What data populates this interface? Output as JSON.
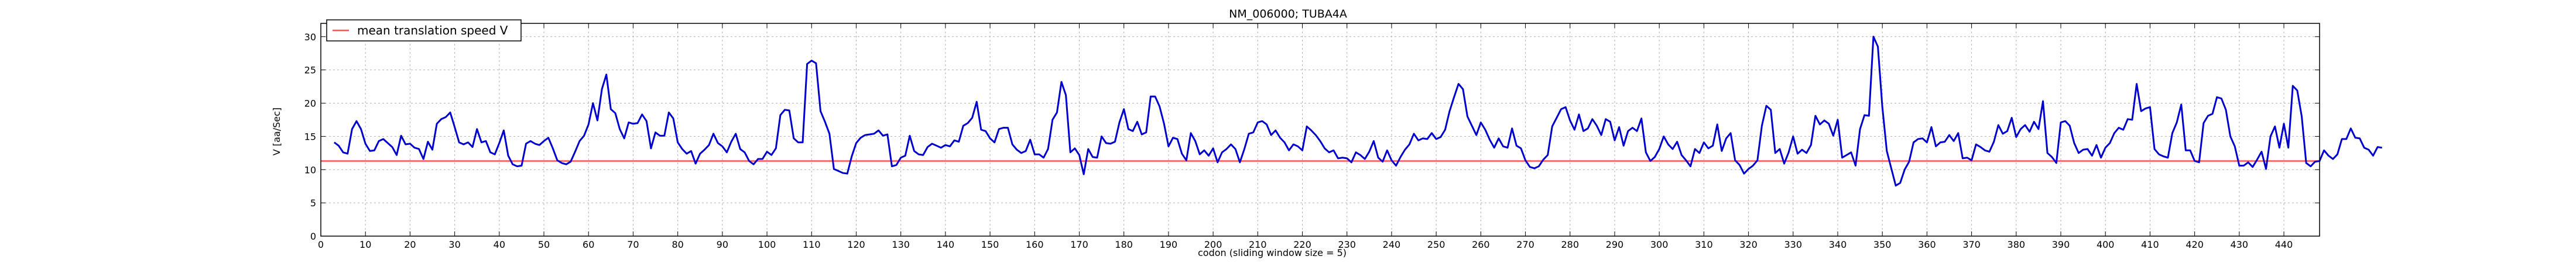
{
  "chart_data": {
    "type": "line",
    "title": "NM_006000; TUBA4A",
    "xlabel": "codon  (sliding window size = 5)",
    "ylabel": "V [aa/Sec]",
    "xlim": [
      0,
      448
    ],
    "ylim": [
      0,
      32
    ],
    "xticks": [
      0,
      10,
      20,
      30,
      40,
      50,
      60,
      70,
      80,
      90,
      100,
      110,
      120,
      130,
      140,
      150,
      160,
      170,
      180,
      190,
      200,
      210,
      220,
      230,
      240,
      250,
      260,
      270,
      280,
      290,
      300,
      310,
      320,
      330,
      340,
      350,
      360,
      370,
      380,
      390,
      400,
      410,
      420,
      430,
      440
    ],
    "yticks": [
      0,
      5,
      10,
      15,
      20,
      25,
      30
    ],
    "grid": true,
    "legend_position": "top-left",
    "series": [
      {
        "name": "V",
        "color": "#0000cc",
        "x_start": 3,
        "values": [
          14.1,
          13.6,
          12.6,
          12.4,
          16.1,
          17.3,
          16.1,
          13.9,
          12.8,
          12.9,
          14.3,
          14.6,
          14.0,
          13.4,
          12.2,
          15.1,
          13.8,
          13.9,
          13.3,
          13.1,
          11.6,
          14.2,
          13.0,
          16.9,
          17.6,
          17.9,
          18.6,
          16.4,
          14.1,
          13.8,
          14.1,
          13.4,
          16.1,
          14.1,
          14.3,
          12.6,
          12.3,
          14.0,
          15.9,
          12.1,
          10.8,
          10.5,
          10.6,
          13.9,
          14.3,
          13.9,
          13.7,
          14.3,
          14.8,
          13.2,
          11.4,
          11.0,
          10.8,
          11.2,
          12.7,
          14.3,
          15.1,
          16.8,
          20.0,
          17.4,
          22.1,
          24.3,
          19.1,
          18.5,
          16.1,
          14.7,
          17.1,
          16.9,
          17.0,
          18.3,
          17.3,
          13.2,
          15.6,
          15.1,
          15.1,
          18.6,
          17.7,
          14.1,
          13.1,
          12.4,
          12.8,
          10.9,
          12.4,
          13.0,
          13.7,
          15.4,
          14.0,
          13.5,
          12.6,
          14.2,
          15.4,
          13.1,
          12.6,
          11.3,
          10.8,
          11.6,
          11.6,
          12.7,
          12.2,
          13.2,
          18.2,
          19.0,
          18.9,
          14.7,
          14.1,
          14.1,
          25.9,
          26.4,
          26.0,
          18.8,
          17.2,
          15.4,
          10.1,
          9.8,
          9.5,
          9.4,
          12.0,
          14.0,
          14.8,
          15.2,
          15.3,
          15.4,
          15.9,
          15.1,
          15.3,
          10.5,
          10.7,
          11.8,
          12.1,
          15.1,
          12.8,
          12.3,
          12.2,
          13.4,
          13.9,
          13.6,
          13.3,
          13.7,
          13.5,
          14.4,
          14.2,
          16.6,
          17.0,
          17.8,
          20.2,
          16.0,
          15.8,
          14.7,
          14.1,
          16.1,
          16.3,
          16.3,
          13.8,
          13.0,
          12.5,
          12.8,
          14.5,
          12.3,
          12.3,
          11.8,
          13.1,
          17.5,
          18.6,
          23.2,
          21.2,
          12.6,
          13.2,
          12.2,
          9.3,
          13.1,
          11.9,
          11.8,
          15.0,
          14.0,
          13.9,
          14.2,
          17.1,
          19.1,
          16.1,
          15.8,
          17.2,
          15.3,
          15.6,
          21.0,
          21.0,
          19.5,
          16.9,
          13.5,
          14.8,
          14.6,
          12.4,
          11.4,
          15.5,
          14.3,
          12.3,
          12.9,
          12.1,
          13.2,
          11.1,
          12.6,
          13.1,
          13.8,
          13.1,
          11.1,
          13.1,
          15.4,
          15.6,
          17.1,
          17.3,
          16.8,
          15.2,
          15.9,
          14.8,
          14.1,
          12.9,
          13.8,
          13.5,
          12.9,
          16.5,
          15.9,
          15.2,
          14.3,
          13.2,
          12.6,
          12.9,
          11.7,
          11.8,
          11.7,
          11.1,
          12.6,
          12.2,
          11.6,
          12.7,
          14.3,
          11.8,
          11.2,
          12.9,
          11.4,
          10.6,
          11.9,
          13.0,
          13.8,
          15.4,
          14.4,
          14.7,
          14.6,
          15.5,
          14.6,
          14.9,
          16.0,
          18.8,
          20.9,
          22.9,
          22.1,
          18.0,
          16.6,
          15.2,
          17.1,
          16.0,
          14.5,
          13.3,
          14.7,
          13.5,
          13.3,
          16.2,
          13.6,
          13.2,
          11.4,
          10.4,
          10.2,
          10.5,
          11.5,
          12.2,
          16.5,
          17.8,
          19.1,
          19.4,
          17.4,
          16.0,
          18.3,
          15.8,
          16.2,
          17.6,
          16.6,
          15.2,
          17.6,
          17.2,
          14.4,
          16.4,
          13.6,
          15.8,
          16.3,
          15.8,
          17.7,
          12.6,
          11.3,
          11.9,
          13.1,
          15.0,
          13.8,
          13.1,
          14.2,
          12.2,
          11.4,
          10.5,
          13.1,
          12.5,
          14.1,
          13.2,
          13.6,
          16.8,
          12.8,
          14.7,
          15.5,
          11.4,
          10.7,
          9.4,
          10.1,
          10.6,
          11.4,
          16.6,
          19.6,
          19.0,
          12.5,
          13.1,
          10.9,
          12.6,
          15.0,
          12.4,
          13.0,
          12.5,
          13.7,
          18.1,
          16.8,
          17.4,
          16.9,
          15.1,
          17.5,
          11.8,
          12.2,
          12.6,
          10.6,
          16.1,
          18.2,
          18.1,
          30.0,
          28.5,
          19.4,
          12.8,
          10.2,
          7.6,
          8.0,
          10.0,
          11.2,
          14.1,
          14.6,
          14.7,
          14.1,
          16.4,
          13.5,
          14.1,
          14.2,
          15.2,
          14.3,
          15.5,
          11.7,
          11.8,
          11.4,
          13.8,
          13.4,
          12.9,
          12.7,
          14.2,
          16.7,
          15.4,
          15.8,
          17.8,
          14.9,
          16.1,
          16.7,
          15.7,
          17.2,
          16.1,
          20.3,
          12.5,
          11.9,
          11.0,
          17.1,
          17.3,
          16.6,
          14.0,
          12.5,
          13.0,
          13.1,
          12.1,
          13.7,
          11.8,
          13.3,
          14.0,
          15.5,
          16.3,
          16.0,
          17.6,
          17.5,
          22.9,
          18.8,
          19.2,
          19.4,
          13.1,
          12.3,
          12.0,
          11.8,
          15.5,
          17.1,
          19.8,
          12.9,
          12.9,
          11.3,
          11.1,
          17.0,
          18.1,
          18.4,
          20.9,
          20.7,
          19.0,
          15.0,
          13.5,
          10.6,
          10.6,
          11.1,
          10.4,
          11.5,
          12.7,
          10.1,
          15.0,
          16.5,
          13.3,
          16.9,
          13.3,
          22.6,
          21.9,
          18.0,
          11.0,
          10.5,
          11.2,
          11.3,
          12.9,
          12.1,
          11.6,
          12.3,
          14.6,
          14.6,
          16.2,
          14.8,
          14.7,
          13.3,
          13.0,
          12.1,
          13.4,
          13.3
        ]
      },
      {
        "name": "mean translation speed V",
        "color": "#ff5555",
        "constant": 11.3
      }
    ]
  }
}
